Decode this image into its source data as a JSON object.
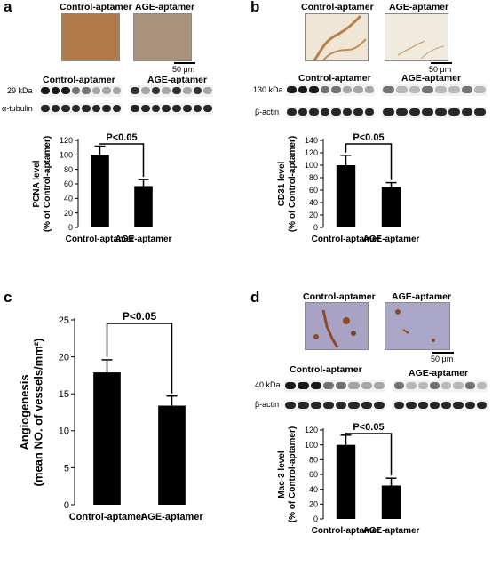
{
  "panels": {
    "a": {
      "label": "a",
      "micro_left": "Control-aptamer",
      "micro_right": "AGE-aptamer",
      "scale": "50 μm",
      "blot_header_left": "Control-aptamer",
      "blot_header_right": "AGE-aptamer",
      "row1_label": "29 kDa",
      "row2_label": "α-tubulin",
      "tissue_colors": [
        "#b07a4a",
        "#a9917c"
      ]
    },
    "b": {
      "label": "b",
      "micro_left": "Control-aptamer",
      "micro_right": "AGE-aptamer",
      "scale": "50 μm",
      "blot_header_left": "Control-aptamer",
      "blot_header_right": "AGE-aptamer",
      "row1_label": "130 kDa",
      "row2_label": "β-actin",
      "tissue_colors": [
        "#efe6d6",
        "#f1ebdf"
      ]
    },
    "c": {
      "label": "c"
    },
    "d": {
      "label": "d",
      "micro_left": "Control-aptamer",
      "micro_right": "AGE-aptamer",
      "scale": "50 μm",
      "blot_header_left": "Control-aptamer",
      "blot_header_right": "AGE-aptamer",
      "row1_label": "40 kDa",
      "row2_label": "β-actin",
      "tissue_colors": [
        "#a8a3c4",
        "#aaa6c8"
      ]
    }
  },
  "chart_data": [
    {
      "id": "a",
      "type": "bar",
      "categories": [
        "Control-aptamer",
        "AGE-aptamer"
      ],
      "values": [
        100,
        57
      ],
      "errors": [
        12,
        9
      ],
      "ylabel_lines": [
        "PCNA level",
        "(% of Control-aptamer)"
      ],
      "ylim": [
        0,
        120
      ],
      "yticks": [
        0,
        20,
        40,
        60,
        80,
        100,
        120
      ],
      "significance": "P<0.05",
      "bar_color": "#000000"
    },
    {
      "id": "b",
      "type": "bar",
      "categories": [
        "Control-aptamer",
        "AGE-aptamer"
      ],
      "values": [
        100,
        65
      ],
      "errors": [
        16,
        7
      ],
      "ylabel_lines": [
        "CD31 level",
        "(% of Control-aptamer)"
      ],
      "ylim": [
        0,
        140
      ],
      "yticks": [
        0,
        20,
        40,
        60,
        80,
        100,
        120,
        140
      ],
      "significance": "P<0.05",
      "bar_color": "#000000"
    },
    {
      "id": "c",
      "type": "bar",
      "categories": [
        "Control-aptamer",
        "AGE-aptamer"
      ],
      "values": [
        17.9,
        13.4
      ],
      "errors": [
        1.7,
        1.3
      ],
      "ylabel_lines": [
        "Angiogenesis",
        "(mean NO. of vessels/mm²)"
      ],
      "ylim": [
        0,
        25
      ],
      "yticks": [
        0,
        5,
        10,
        15,
        20,
        25
      ],
      "significance": "P<0.05",
      "bar_color": "#000000"
    },
    {
      "id": "d",
      "type": "bar",
      "categories": [
        "Control-aptamer",
        "AGE-aptamer"
      ],
      "values": [
        100,
        45
      ],
      "errors": [
        13,
        10
      ],
      "ylabel_lines": [
        "Mac-3 level",
        "(% of Control-aptamer)"
      ],
      "ylim": [
        0,
        120
      ],
      "yticks": [
        0,
        20,
        40,
        60,
        80,
        100,
        120
      ],
      "significance": "P<0.05",
      "bar_color": "#000000"
    }
  ]
}
